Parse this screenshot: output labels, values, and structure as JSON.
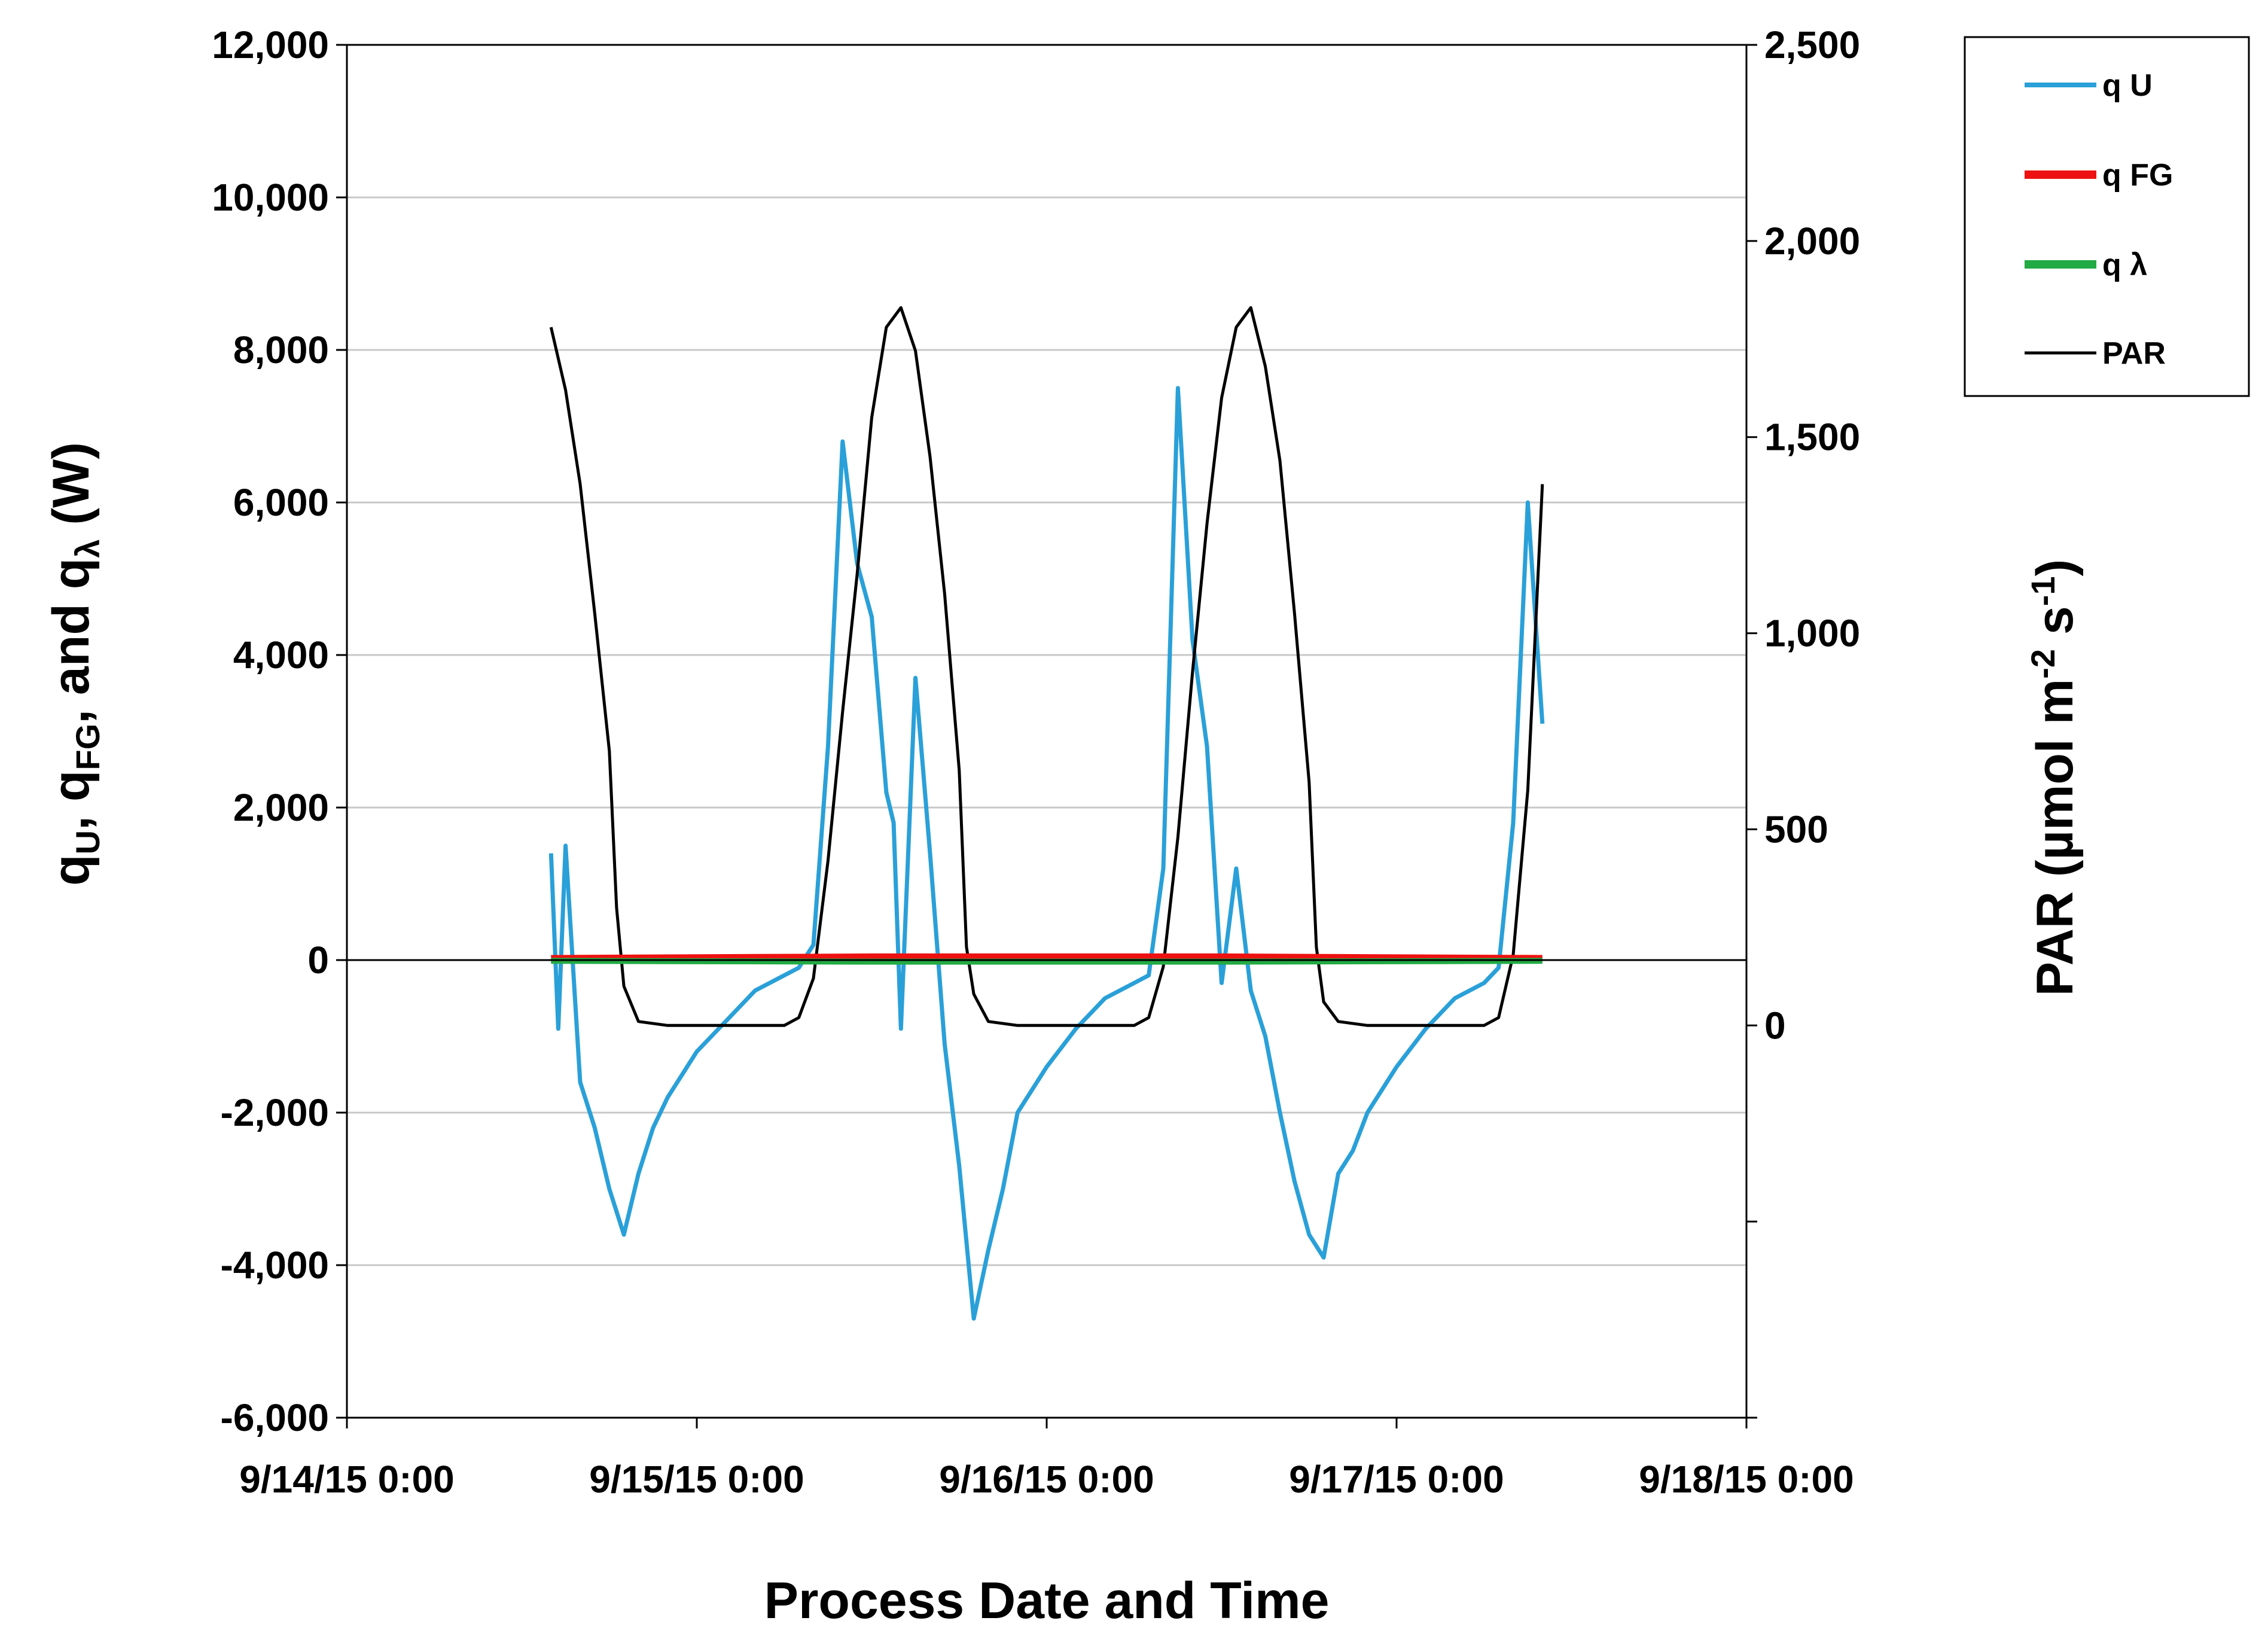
{
  "chart_data": {
    "type": "line",
    "xlabel": "Process Date and Time",
    "ylabel_left": {
      "main": "q",
      "parts": [
        {
          "base": "q",
          "sub": "U",
          "sep": ", "
        },
        {
          "base": "q",
          "sub": "FG",
          "sep": ", and "
        },
        {
          "base": "q",
          "sub": "λ",
          "sep": " (W)"
        }
      ]
    },
    "ylabel_right": {
      "prefix": "PAR (µmol m",
      "sup1": "-2",
      "mid": " s",
      "sup2": "-1",
      "suffix": ")"
    },
    "x_ticks": [
      "9/14/15 0:00",
      "9/15/15 0:00",
      "9/16/15 0:00",
      "9/17/15 0:00",
      "9/18/15 0:00"
    ],
    "x_range_days": [
      0,
      4
    ],
    "y_left_ticks": [
      "12,000",
      "10,000",
      "8,000",
      "6,000",
      "4,000",
      "2,000",
      "0",
      "-2,000",
      "-4,000",
      "-6,000"
    ],
    "y_left_range": [
      -6000,
      12000
    ],
    "y_right_ticks": [
      "2,500",
      "2,000",
      "1,500",
      "1,000",
      "500",
      "0"
    ],
    "y_right_range": [
      -1000,
      2500
    ],
    "grid": true,
    "legend_position": "top-right",
    "legend": [
      {
        "label": "q U",
        "color": "#2aa0d8"
      },
      {
        "label": "q FG",
        "color": "#ee1111"
      },
      {
        "label": "q  λ",
        "color": "#22aa44"
      },
      {
        "label": "PAR",
        "color": "#000000"
      }
    ],
    "series": [
      {
        "name": "PAR",
        "axis": "right",
        "color": "#000000",
        "x": [
          "9/14/15 14:00",
          "9/14/15 15:00",
          "9/14/15 16:00",
          "9/14/15 17:00",
          "9/14/15 18:00",
          "9/14/15 18:30",
          "9/14/15 19:00",
          "9/14/15 20:00",
          "9/14/15 22:00",
          "9/15/15 1:00",
          "9/15/15 4:00",
          "9/15/15 6:00",
          "9/15/15 7:00",
          "9/15/15 8:00",
          "9/15/15 9:00",
          "9/15/15 10:00",
          "9/15/15 11:00",
          "9/15/15 12:00",
          "9/15/15 13:00",
          "9/15/15 14:00",
          "9/15/15 15:00",
          "9/15/15 16:00",
          "9/15/15 17:00",
          "9/15/15 18:00",
          "9/15/15 18:30",
          "9/15/15 19:00",
          "9/15/15 20:00",
          "9/15/15 22:00",
          "9/16/15 2:00",
          "9/16/15 6:00",
          "9/16/15 7:00",
          "9/16/15 8:00",
          "9/16/15 9:00",
          "9/16/15 10:00",
          "9/16/15 11:00",
          "9/16/15 12:00",
          "9/16/15 13:00",
          "9/16/15 14:00",
          "9/16/15 15:00",
          "9/16/15 16:00",
          "9/16/15 17:00",
          "9/16/15 18:00",
          "9/16/15 18:30",
          "9/16/15 19:00",
          "9/16/15 20:00",
          "9/16/15 22:00",
          "9/17/15 2:00",
          "9/17/15 6:00",
          "9/17/15 7:00",
          "9/17/15 8:00",
          "9/17/15 9:00",
          "9/17/15 10:00"
        ],
        "y": [
          1780,
          1620,
          1380,
          1050,
          700,
          300,
          100,
          10,
          0,
          0,
          0,
          0,
          20,
          120,
          420,
          800,
          1150,
          1550,
          1780,
          1830,
          1720,
          1450,
          1100,
          650,
          200,
          80,
          10,
          0,
          0,
          0,
          20,
          150,
          480,
          900,
          1280,
          1600,
          1780,
          1830,
          1680,
          1440,
          1050,
          620,
          200,
          60,
          10,
          0,
          0,
          0,
          20,
          180,
          600,
          1380
        ]
      },
      {
        "name": "q U",
        "axis": "left",
        "color": "#2aa0d8",
        "x": [
          "9/14/15 14:00",
          "9/14/15 14:30",
          "9/14/15 15:00",
          "9/14/15 16:00",
          "9/14/15 17:00",
          "9/14/15 18:00",
          "9/14/15 19:00",
          "9/14/15 20:00",
          "9/14/15 21:00",
          "9/14/15 22:00",
          "9/15/15 0:00",
          "9/15/15 2:00",
          "9/15/15 4:00",
          "9/15/15 6:00",
          "9/15/15 7:00",
          "9/15/15 8:00",
          "9/15/15 9:00",
          "9/15/15 10:00",
          "9/15/15 11:00",
          "9/15/15 12:00",
          "9/15/15 13:00",
          "9/15/15 13:30",
          "9/15/15 14:00",
          "9/15/15 15:00",
          "9/15/15 16:00",
          "9/15/15 17:00",
          "9/15/15 18:00",
          "9/15/15 19:00",
          "9/15/15 20:00",
          "9/15/15 21:00",
          "9/15/15 22:00",
          "9/16/15 0:00",
          "9/16/15 2:00",
          "9/16/15 4:00",
          "9/16/15 6:00",
          "9/16/15 7:00",
          "9/16/15 8:00",
          "9/16/15 9:00",
          "9/16/15 10:00",
          "9/16/15 11:00",
          "9/16/15 12:00",
          "9/16/15 13:00",
          "9/16/15 14:00",
          "9/16/15 15:00",
          "9/16/15 16:00",
          "9/16/15 17:00",
          "9/16/15 18:00",
          "9/16/15 19:00",
          "9/16/15 20:00",
          "9/16/15 21:00",
          "9/16/15 22:00",
          "9/17/15 0:00",
          "9/17/15 2:00",
          "9/17/15 4:00",
          "9/17/15 6:00",
          "9/17/15 7:00",
          "9/17/15 8:00",
          "9/17/15 9:00",
          "9/17/15 10:00"
        ],
        "y": [
          1400,
          -900,
          1500,
          -1600,
          -2200,
          -3000,
          -3600,
          -2800,
          -2200,
          -1800,
          -1200,
          -800,
          -400,
          -200,
          -100,
          200,
          2800,
          6800,
          5200,
          4500,
          2200,
          1800,
          -900,
          3700,
          1400,
          -1100,
          -2700,
          -4700,
          -3800,
          -3000,
          -2000,
          -1400,
          -900,
          -500,
          -300,
          -200,
          1200,
          7500,
          4200,
          2800,
          -300,
          1200,
          -400,
          -1000,
          -2000,
          -2900,
          -3600,
          -3900,
          -2800,
          -2500,
          -2000,
          -1400,
          -900,
          -500,
          -300,
          -100,
          1800,
          6000,
          3100
        ]
      },
      {
        "name": "q FG",
        "axis": "left",
        "color": "#ee1111",
        "x": [
          "9/14/15 14:00",
          "9/15/15 12:00",
          "9/16/15 12:00",
          "9/17/15 10:00"
        ],
        "y": [
          20,
          40,
          40,
          20
        ]
      },
      {
        "name": "q  λ",
        "axis": "left",
        "color": "#22aa44",
        "x": [
          "9/14/15 14:00",
          "9/15/15 12:00",
          "9/16/15 12:00",
          "9/17/15 10:00"
        ],
        "y": [
          -10,
          -20,
          -20,
          -10
        ]
      }
    ]
  }
}
